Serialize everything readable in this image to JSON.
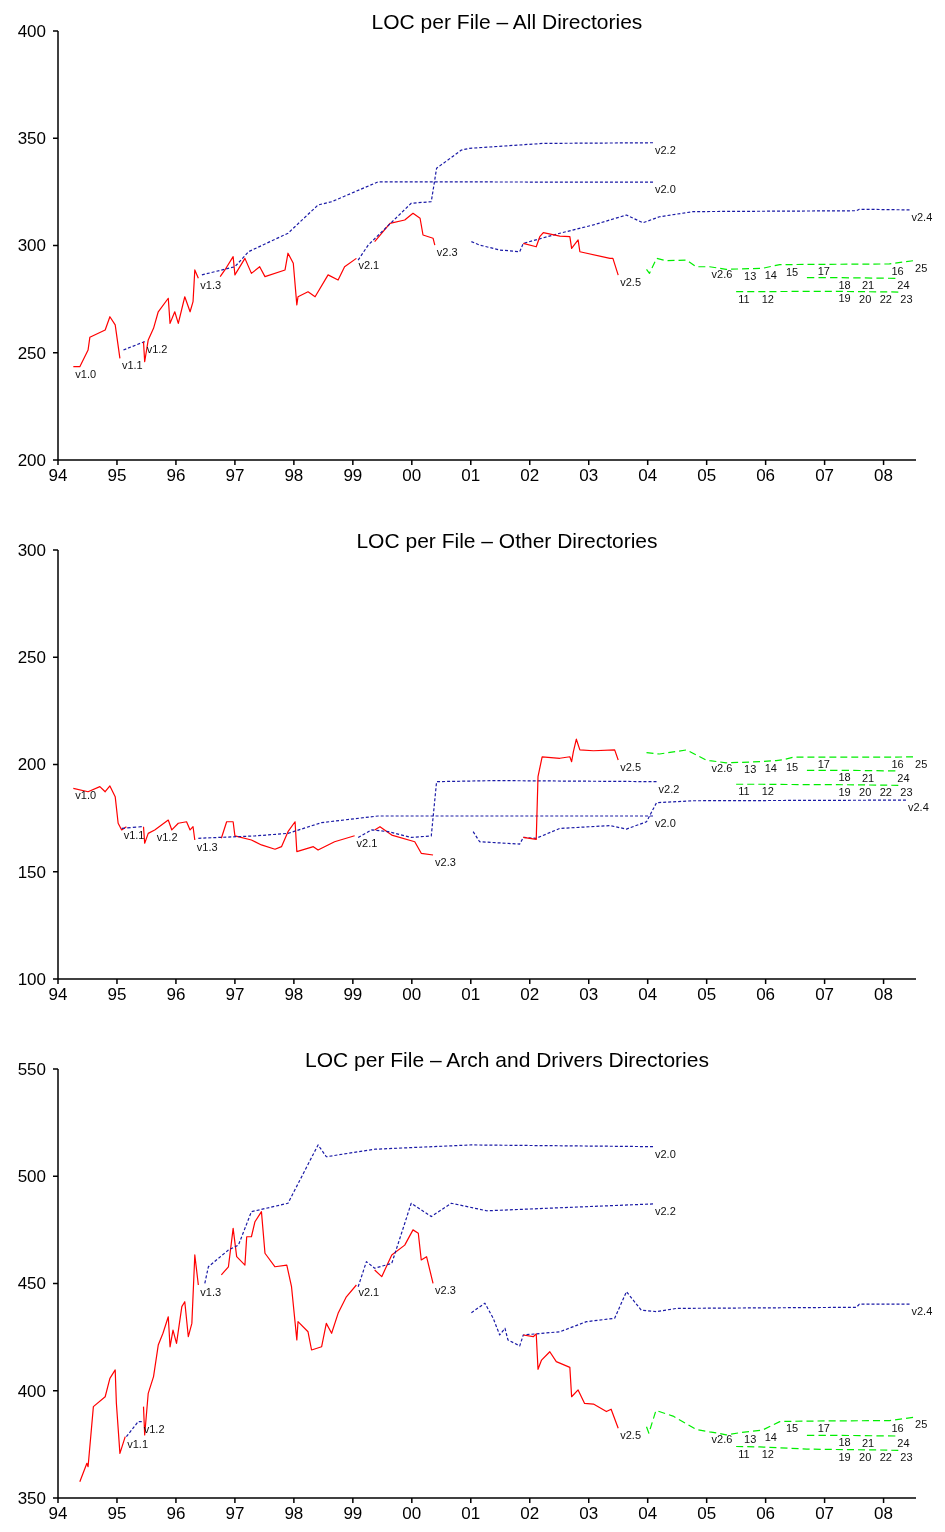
{
  "chart_data": [
    {
      "type": "line",
      "title": "LOC per File – All Directories",
      "xlim": [
        1994,
        2008.55
      ],
      "ylim": [
        200,
        400
      ],
      "yticks": [
        200,
        250,
        300,
        350,
        400
      ],
      "xticks": [
        {
          "value": 1994,
          "label": "94"
        },
        {
          "value": 1995,
          "label": "95"
        },
        {
          "value": 1996,
          "label": "96"
        },
        {
          "value": 1997,
          "label": "97"
        },
        {
          "value": 1998,
          "label": "98"
        },
        {
          "value": 1999,
          "label": "99"
        },
        {
          "value": 2000,
          "label": "00"
        },
        {
          "value": 2001,
          "label": "01"
        },
        {
          "value": 2002,
          "label": "02"
        },
        {
          "value": 2003,
          "label": "03"
        },
        {
          "value": 2004,
          "label": "04"
        },
        {
          "value": 2005,
          "label": "05"
        },
        {
          "value": 2006,
          "label": "06"
        },
        {
          "value": 2007,
          "label": "07"
        },
        {
          "value": 2008,
          "label": "08"
        }
      ],
      "series": [
        {
          "color": "#ff0000",
          "line_style": "solid",
          "x": [
            1994.26,
            1994.37,
            1994.51,
            1994.54,
            1994.8,
            1994.88,
            1994.97,
            1995.05
          ],
          "values": [
            243.5,
            243.5,
            251.3,
            257.2,
            260.6,
            266.8,
            263,
            247.4
          ]
        },
        {
          "color": "#1a1aa6",
          "line_style": "dotted",
          "x": [
            1995.11,
            1995.47
          ],
          "values": [
            251.3,
            255.2
          ]
        },
        {
          "color": "#ff0000",
          "line_style": "solid",
          "x": [
            1995.45,
            1995.47,
            1995.53,
            1995.62,
            1995.7,
            1995.87,
            1995.9,
            1995.98,
            1996.04,
            1996.15,
            1996.24,
            1996.29,
            1996.32,
            1996.38
          ],
          "values": [
            255.2,
            245.8,
            256,
            261.4,
            269.1,
            275.4,
            263.7,
            269.1,
            263.7,
            276.1,
            269.1,
            273.8,
            288.6,
            284.7
          ]
        },
        {
          "color": "#ff0000",
          "line_style": "solid",
          "x": [
            1996.75,
            1996.83,
            1996.97,
            1997,
            1997.17,
            1997.28,
            1997.42,
            1997.51,
            1997.85,
            1997.9,
            1997.99,
            1998.05,
            1998.07,
            1998.24,
            1998.36,
            1998.58,
            1998.75,
            1998.86,
            1999.06
          ],
          "values": [
            285.5,
            288.6,
            294.8,
            286.3,
            294,
            287,
            290.1,
            285.5,
            288.6,
            296.4,
            291.7,
            272.3,
            276.1,
            278.4,
            276.1,
            286.3,
            283.9,
            290.1,
            294
          ]
        },
        {
          "color": "#ff0000",
          "line_style": "solid",
          "x": [
            1999.37,
            1999.63,
            1999.88,
            2000.02,
            2000.14,
            2000.19,
            2000.36,
            2000.39
          ],
          "values": [
            301.8,
            310.3,
            311.9,
            315,
            312.7,
            304.9,
            303.4,
            300.2
          ]
        },
        {
          "color": "#1a1aa6",
          "line_style": "dotted",
          "x": [
            1996.44,
            1996.66,
            1997,
            1997.23,
            1997.9,
            1998.41,
            1998.64,
            1999.43,
            2004.09
          ],
          "values": [
            286.3,
            287.8,
            290.1,
            297.1,
            305.7,
            318.9,
            320.4,
            329.7,
            329.5
          ]
        },
        {
          "color": "#1a1aa6",
          "line_style": "dotted",
          "x": [
            1999.09,
            1999.26,
            1999.99,
            2000.33,
            2000.42,
            2000.84,
            2000.98,
            2002.23,
            2004.09
          ],
          "values": [
            293.2,
            300.2,
            319.7,
            320.4,
            336,
            344.5,
            345.3,
            347.6,
            347.9
          ]
        },
        {
          "color": "#1a1aa6",
          "line_style": "dotted",
          "x": [
            2001.01,
            2001.15,
            2001.49,
            2001.83,
            2001.89,
            2002.51,
            2003.08,
            2003.64,
            2003.92,
            2004.2,
            2004.77,
            2007.54,
            2007.59,
            2008.44
          ],
          "values": [
            301.8,
            300.2,
            297.9,
            297.1,
            301,
            305.7,
            309.6,
            314.2,
            310.6,
            313.4,
            315.8,
            316.2,
            316.9,
            316.6
          ]
        },
        {
          "color": "#ff0000",
          "line_style": "solid",
          "x": [
            2001.89,
            2002.11,
            2002.17,
            2002.23,
            2002.51,
            2002.68,
            2002.71,
            2002.82,
            2002.85,
            2003.36,
            2003.41,
            2003.5
          ],
          "values": [
            301,
            299.4,
            304.1,
            306,
            304.4,
            304.1,
            298.7,
            302.6,
            297.1,
            294,
            294,
            286.2
          ]
        },
        {
          "color": "#00ee00",
          "line_style": "dashed",
          "x": [
            2003.98,
            2004.03,
            2004.15,
            2004.32,
            2004.66,
            2004.82,
            2005.05,
            2005.33,
            2005.6,
            2005.95,
            2006.24,
            2006.31,
            2006.85,
            2008.1,
            2008.5
          ],
          "values": [
            288.9,
            287,
            294,
            292.9,
            293.2,
            290.1,
            290.1,
            288.9,
            289.1,
            289.4,
            291.1,
            291.1,
            291.2,
            291.4,
            292.9
          ]
        },
        {
          "color": "#00ee00",
          "line_style": "dashed",
          "x": [
            2006.7,
            2007.2,
            2007.6,
            2008.2
          ],
          "values": [
            285,
            285,
            284.9,
            284.7
          ]
        },
        {
          "color": "#00ee00",
          "line_style": "dashed",
          "x": [
            2005.5,
            2005.9,
            2006.7,
            2007.2,
            2007.55,
            2007.9,
            2008.25
          ],
          "values": [
            278.5,
            278.5,
            278.6,
            278.6,
            278.5,
            278.4,
            278.3
          ]
        }
      ],
      "annotations": [
        {
          "text": "v1.0",
          "x": 1994.26,
          "y": 243.5
        },
        {
          "text": "v1.1",
          "x": 1995.05,
          "y": 247.4
        },
        {
          "text": "v1.2",
          "x": 1995.47,
          "y": 255.2
        },
        {
          "text": "v1.3",
          "x": 1996.38,
          "y": 284.7
        },
        {
          "text": "v2.1",
          "x": 1999.06,
          "y": 294
        },
        {
          "text": "v2.3",
          "x": 2000.39,
          "y": 300.2
        },
        {
          "text": "v2.0",
          "x": 2004.09,
          "y": 329.5
        },
        {
          "text": "v2.2",
          "x": 2004.09,
          "y": 347.9
        },
        {
          "text": "v2.4",
          "x": 2008.44,
          "y": 316.6
        },
        {
          "text": "v2.5",
          "x": 2003.5,
          "y": 286.2
        },
        {
          "text": "v2.6",
          "x": 2005.05,
          "y": 290.1
        },
        {
          "text": "11",
          "x": 2005.5,
          "y": 278.5
        },
        {
          "text": "12",
          "x": 2005.9,
          "y": 278.5
        },
        {
          "text": "13",
          "x": 2005.6,
          "y": 289.1
        },
        {
          "text": "14",
          "x": 2005.95,
          "y": 289.4
        },
        {
          "text": "15",
          "x": 2006.31,
          "y": 291.1
        },
        {
          "text": "16",
          "x": 2008.1,
          "y": 291.4
        },
        {
          "text": "17",
          "x": 2006.85,
          "y": 291.2
        },
        {
          "text": "18",
          "x": 2007.2,
          "y": 285
        },
        {
          "text": "19",
          "x": 2007.2,
          "y": 278.6
        },
        {
          "text": "20",
          "x": 2007.55,
          "y": 278.5
        },
        {
          "text": "21",
          "x": 2007.6,
          "y": 284.9
        },
        {
          "text": "22",
          "x": 2007.9,
          "y": 278.4
        },
        {
          "text": "23",
          "x": 2008.25,
          "y": 278.3
        },
        {
          "text": "24",
          "x": 2008.2,
          "y": 284.7
        },
        {
          "text": "25",
          "x": 2008.5,
          "y": 292.9
        }
      ]
    },
    {
      "type": "line",
      "title": "LOC per File – Other Directories",
      "xlim": [
        1994,
        2008.55
      ],
      "ylim": [
        100,
        300
      ],
      "yticks": [
        100,
        150,
        200,
        250,
        300
      ],
      "xticks": [
        {
          "value": 1994,
          "label": "94"
        },
        {
          "value": 1995,
          "label": "95"
        },
        {
          "value": 1996,
          "label": "96"
        },
        {
          "value": 1997,
          "label": "97"
        },
        {
          "value": 1998,
          "label": "98"
        },
        {
          "value": 1999,
          "label": "99"
        },
        {
          "value": 2000,
          "label": "00"
        },
        {
          "value": 2001,
          "label": "01"
        },
        {
          "value": 2002,
          "label": "02"
        },
        {
          "value": 2003,
          "label": "03"
        },
        {
          "value": 2004,
          "label": "04"
        },
        {
          "value": 2005,
          "label": "05"
        },
        {
          "value": 2006,
          "label": "06"
        },
        {
          "value": 2007,
          "label": "07"
        },
        {
          "value": 2008,
          "label": "08"
        }
      ],
      "series": [
        {
          "color": "#ff0000",
          "line_style": "solid",
          "x": [
            1994.26,
            1994.51,
            1994.71,
            1994.8,
            1994.88,
            1994.97,
            1995.02,
            1995.08,
            1995.16
          ],
          "values": [
            188.9,
            187.3,
            189.7,
            187.3,
            190,
            185,
            172.6,
            169.5,
            171
          ]
        },
        {
          "color": "#1a1aa6",
          "line_style": "dotted",
          "x": [
            1995.08,
            1995.42
          ],
          "values": [
            170.2,
            171
          ]
        },
        {
          "color": "#ff0000",
          "line_style": "solid",
          "x": [
            1995.45,
            1995.47,
            1995.53,
            1995.64,
            1995.87,
            1995.93,
            1996.04,
            1996.18,
            1996.24,
            1996.29,
            1996.32
          ],
          "values": [
            171,
            163.3,
            167.9,
            169.5,
            174.1,
            169.5,
            172.6,
            173.3,
            169.5,
            171,
            164.8
          ]
        },
        {
          "color": "#ff0000",
          "line_style": "solid",
          "x": [
            1996.77,
            1996.86,
            1996.97,
            1997,
            1997.28,
            1997.45,
            1997.68,
            1997.79,
            1997.9,
            1998.02,
            1998.05,
            1998.33,
            1998.41,
            1998.69,
            1999.03
          ],
          "values": [
            165.6,
            173.3,
            173.3,
            166.7,
            164.8,
            162.5,
            160.5,
            161.7,
            168.7,
            173.3,
            159.4,
            161.7,
            160.1,
            164,
            166.8
          ]
        },
        {
          "color": "#ff0000",
          "line_style": "solid",
          "x": [
            1999.37,
            1999.46,
            1999.66,
            2000.05,
            2000.16,
            2000.36
          ],
          "values": [
            169.5,
            171,
            167.1,
            164,
            158.6,
            157.8
          ]
        },
        {
          "color": "#1a1aa6",
          "line_style": "dotted",
          "x": [
            1996.38,
            1997.34,
            1997.9,
            1998.47,
            1999.43,
            2004.09
          ],
          "values": [
            165.6,
            166.7,
            167.9,
            172.9,
            176,
            176
          ]
        },
        {
          "color": "#1a1aa6",
          "line_style": "dotted",
          "x": [
            1999.09,
            1999.32,
            1999.6,
            1999.99,
            2000.33,
            2000.42,
            2001.41,
            2004.15
          ],
          "values": [
            166,
            169.5,
            168.7,
            166,
            166.7,
            192,
            192.5,
            192
          ]
        },
        {
          "color": "#1a1aa6",
          "line_style": "dotted",
          "x": [
            2001.04,
            2001.15,
            2001.83,
            2001.89,
            2002.11,
            2002.51,
            2003.36,
            2003.64,
            2003.98,
            2004.15,
            2004.77,
            2008.38
          ],
          "values": [
            168.7,
            164,
            162.9,
            166,
            165.6,
            170.2,
            171.5,
            169.9,
            173.3,
            182.2,
            183.1,
            183.4
          ]
        },
        {
          "color": "#ff0000",
          "line_style": "solid",
          "x": [
            2001.89,
            2002.11,
            2002.14,
            2002.21,
            2002.51,
            2002.68,
            2002.71,
            2002.74,
            2002.79,
            2002.85,
            2003.08,
            2003.44,
            2003.5
          ],
          "values": [
            166,
            165.1,
            194.3,
            203.6,
            202.9,
            203.6,
            201.3,
            206,
            211.8,
            206.8,
            206.4,
            206.8,
            202.1
          ]
        },
        {
          "color": "#00ee00",
          "line_style": "dashed",
          "x": [
            2003.98,
            2004.2,
            2004.66,
            2004.99,
            2005.05,
            2005.33,
            2005.6,
            2005.95,
            2006.18,
            2006.31,
            2006.47,
            2006.85,
            2008.1,
            2008.5
          ],
          "values": [
            205.5,
            204.9,
            206.8,
            202.1,
            201.8,
            200.8,
            201,
            201.4,
            201.8,
            202.3,
            203.4,
            203.4,
            203.4,
            203.6
          ]
        },
        {
          "color": "#00ee00",
          "line_style": "dashed",
          "x": [
            2006.7,
            2007.2,
            2007.6,
            2008.2
          ],
          "values": [
            197.3,
            197.3,
            197.2,
            197
          ]
        },
        {
          "color": "#00ee00",
          "line_style": "dashed",
          "x": [
            2005.5,
            2005.9,
            2006.7,
            2007.2,
            2007.55,
            2007.9,
            2008.25
          ],
          "values": [
            190.8,
            190.8,
            190.6,
            190.6,
            190.5,
            190.4,
            190.3
          ]
        }
      ],
      "annotations": [
        {
          "text": "v1.0",
          "x": 1994.26,
          "y": 188.9
        },
        {
          "text": "v1.1",
          "x": 1995.08,
          "y": 170.2
        },
        {
          "text": "v1.2",
          "x": 1995.64,
          "y": 169.5
        },
        {
          "text": "v1.3",
          "x": 1996.32,
          "y": 164.8
        },
        {
          "text": "v2.1",
          "x": 1999.03,
          "y": 166.8
        },
        {
          "text": "v2.3",
          "x": 2000.36,
          "y": 157.8
        },
        {
          "text": "v2.5",
          "x": 2003.5,
          "y": 202.1
        },
        {
          "text": "v2.2",
          "x": 2004.15,
          "y": 192
        },
        {
          "text": "v2.0",
          "x": 2004.09,
          "y": 176
        },
        {
          "text": "v2.4",
          "x": 2008.38,
          "y": 183.4
        },
        {
          "text": "v2.6",
          "x": 2005.05,
          "y": 201.8
        },
        {
          "text": "11",
          "x": 2005.5,
          "y": 190.8
        },
        {
          "text": "12",
          "x": 2005.9,
          "y": 190.8
        },
        {
          "text": "13",
          "x": 2005.6,
          "y": 201
        },
        {
          "text": "14",
          "x": 2005.95,
          "y": 201.4
        },
        {
          "text": "15",
          "x": 2006.31,
          "y": 202.3
        },
        {
          "text": "16",
          "x": 2008.1,
          "y": 203.4
        },
        {
          "text": "17",
          "x": 2006.85,
          "y": 203.4
        },
        {
          "text": "18",
          "x": 2007.2,
          "y": 197.3
        },
        {
          "text": "19",
          "x": 2007.2,
          "y": 190.6
        },
        {
          "text": "20",
          "x": 2007.55,
          "y": 190.5
        },
        {
          "text": "21",
          "x": 2007.6,
          "y": 197.2
        },
        {
          "text": "22",
          "x": 2007.9,
          "y": 190.4
        },
        {
          "text": "23",
          "x": 2008.25,
          "y": 190.3
        },
        {
          "text": "24",
          "x": 2008.2,
          "y": 197
        },
        {
          "text": "25",
          "x": 2008.5,
          "y": 203.6
        }
      ]
    },
    {
      "type": "line",
      "title": "LOC per File – Arch and Drivers Directories",
      "xlim": [
        1994,
        2008.55
      ],
      "ylim": [
        350,
        550
      ],
      "yticks": [
        350,
        400,
        450,
        500,
        550
      ],
      "xticks": [
        {
          "value": 1994,
          "label": "94"
        },
        {
          "value": 1995,
          "label": "95"
        },
        {
          "value": 1996,
          "label": "96"
        },
        {
          "value": 1997,
          "label": "97"
        },
        {
          "value": 1998,
          "label": "98"
        },
        {
          "value": 1999,
          "label": "99"
        },
        {
          "value": 2000,
          "label": "00"
        },
        {
          "value": 2001,
          "label": "01"
        },
        {
          "value": 2002,
          "label": "02"
        },
        {
          "value": 2003,
          "label": "03"
        },
        {
          "value": 2004,
          "label": "04"
        },
        {
          "value": 2005,
          "label": "05"
        },
        {
          "value": 2006,
          "label": "06"
        },
        {
          "value": 2007,
          "label": "07"
        },
        {
          "value": 2008,
          "label": "08"
        }
      ],
      "series": [
        {
          "color": "#ff0000",
          "line_style": "solid",
          "x": [
            1994.37,
            1994.49,
            1994.51,
            1994.6,
            1994.8,
            1994.88,
            1994.97,
            1994.99,
            1995.05,
            1995.14
          ],
          "values": [
            357.6,
            366.2,
            364.6,
            392.6,
            397.2,
            405.8,
            409.7,
            394.2,
            370.8,
            378.6
          ]
        },
        {
          "color": "#1a1aa6",
          "line_style": "dotted",
          "x": [
            1995.16,
            1995.36,
            1995.42
          ],
          "values": [
            378.6,
            385.6,
            385.6
          ]
        },
        {
          "color": "#ff0000",
          "line_style": "solid",
          "x": [
            1995.45,
            1995.47,
            1995.53,
            1995.62,
            1995.7,
            1995.78,
            1995.87,
            1995.9,
            1995.95,
            1996.01,
            1996.1,
            1996.15,
            1996.21,
            1996.27,
            1996.32,
            1996.38
          ],
          "values": [
            392.6,
            379.4,
            398.8,
            406.6,
            421.3,
            426.8,
            434.5,
            420.5,
            428.3,
            422.1,
            439.2,
            441.5,
            425.2,
            431.4,
            463.3,
            449.3
          ]
        },
        {
          "color": "#ff0000",
          "line_style": "solid",
          "x": [
            1996.77,
            1996.89,
            1996.97,
            1997.03,
            1997.17,
            1997.2,
            1997.28,
            1997.34,
            1997.45,
            1997.51,
            1997.68,
            1997.88,
            1997.96,
            1998.05,
            1998.07,
            1998.24,
            1998.3,
            1998.47,
            1998.55,
            1998.64,
            1998.75,
            1998.89,
            1999.06
          ],
          "values": [
            454,
            457.8,
            475.7,
            462.5,
            458.6,
            471.8,
            471.8,
            478.8,
            483.5,
            464.1,
            457.8,
            458.6,
            448.5,
            423.7,
            432.2,
            427.5,
            419,
            420.5,
            431.4,
            426.8,
            436.1,
            443.8,
            449.3
          ]
        },
        {
          "color": "#ff0000",
          "line_style": "solid",
          "x": [
            1999.37,
            1999.49,
            1999.66,
            1999.88,
            2000.02,
            2000.11,
            2000.16,
            2000.25,
            2000.36
          ],
          "values": [
            456.3,
            453.2,
            463.3,
            467.9,
            475,
            473.4,
            461,
            462.5,
            450.1
          ]
        },
        {
          "color": "#1a1aa6",
          "line_style": "dotted",
          "x": [
            1996.49,
            1996.55,
            1996.89,
            1997.06,
            1997.28,
            1997.9,
            1998.41,
            1998.55,
            1999.37,
            2001.01,
            2004.09
          ],
          "values": [
            450.1,
            457.8,
            465.6,
            467.9,
            483.5,
            487.4,
            514.6,
            509.1,
            512.6,
            514.6,
            513.8
          ]
        },
        {
          "color": "#1a1aa6",
          "line_style": "dotted",
          "x": [
            1999.09,
            1999.23,
            1999.37,
            1999.66,
            1999.99,
            2000.33,
            2000.67,
            2000.81,
            2001.27,
            2004.09
          ],
          "values": [
            448.5,
            460.2,
            457.1,
            459.4,
            487.4,
            481.2,
            487.4,
            486.6,
            483.9,
            487.1
          ]
        },
        {
          "color": "#1a1aa6",
          "line_style": "dotted",
          "x": [
            2001.01,
            2001.24,
            2001.38,
            2001.49,
            2001.58,
            2001.63,
            2001.83,
            2001.89,
            2002.51,
            2002.96,
            2003.44,
            2003.64,
            2003.89,
            2004.15,
            2004.49,
            2007.54,
            2007.59,
            2008.44
          ],
          "values": [
            436.4,
            440.8,
            433.8,
            426,
            429.1,
            423.7,
            420.9,
            426,
            427.5,
            432.2,
            433.8,
            446.2,
            437.6,
            436.9,
            438.4,
            438.9,
            440.4,
            440.4
          ]
        },
        {
          "color": "#ff0000",
          "line_style": "solid",
          "x": [
            2001.89,
            2002.06,
            2002.11,
            2002.14,
            2002.2,
            2002.34,
            2002.45,
            2002.68,
            2002.71,
            2002.82,
            2002.93,
            2003.08,
            2003.3,
            2003.38,
            2003.5
          ],
          "values": [
            426,
            425.2,
            426.5,
            410,
            414.3,
            418.2,
            413.6,
            410.9,
            397.2,
            400.4,
            394.1,
            393.8,
            390.3,
            391.4,
            382.5
          ]
        },
        {
          "color": "#00ee00",
          "line_style": "dashed",
          "x": [
            2003.98,
            2004.02,
            2004.14,
            2004.43,
            2004.82,
            2005.05,
            2005.19,
            2005.33,
            2005.6,
            2005.95,
            2006.24,
            2006.31,
            2006.85,
            2008.1,
            2008.5
          ],
          "values": [
            383.2,
            380.2,
            390.8,
            388.2,
            382,
            380.8,
            380.2,
            379.4,
            380.6,
            381.7,
            385.6,
            385.7,
            385.9,
            386.1,
            387.6
          ]
        },
        {
          "color": "#00ee00",
          "line_style": "dashed",
          "x": [
            2006.7,
            2007.2,
            2007.6,
            2008.2
          ],
          "values": [
            379.2,
            379.2,
            379.1,
            378.9
          ]
        },
        {
          "color": "#00ee00",
          "line_style": "dashed",
          "x": [
            2005.5,
            2005.9,
            2006.7,
            2007.2,
            2007.55,
            2007.9,
            2008.25
          ],
          "values": [
            374,
            373.8,
            372.8,
            372.6,
            372.5,
            372.4,
            372.2
          ]
        }
      ],
      "annotations": [
        {
          "text": "v1.1",
          "x": 1995.14,
          "y": 378.6
        },
        {
          "text": "v1.2",
          "x": 1995.42,
          "y": 385.6
        },
        {
          "text": "v1.3",
          "x": 1996.38,
          "y": 449.3
        },
        {
          "text": "v2.1",
          "x": 1999.06,
          "y": 449.3
        },
        {
          "text": "v2.3",
          "x": 2000.36,
          "y": 450.1
        },
        {
          "text": "v2.0",
          "x": 2004.09,
          "y": 513.8
        },
        {
          "text": "v2.2",
          "x": 2004.09,
          "y": 487.1
        },
        {
          "text": "v2.4",
          "x": 2008.44,
          "y": 440.4
        },
        {
          "text": "v2.5",
          "x": 2003.5,
          "y": 382.5
        },
        {
          "text": "v2.6",
          "x": 2005.05,
          "y": 380.8
        },
        {
          "text": "11",
          "x": 2005.5,
          "y": 374
        },
        {
          "text": "12",
          "x": 2005.9,
          "y": 373.8
        },
        {
          "text": "13",
          "x": 2005.6,
          "y": 380.6
        },
        {
          "text": "14",
          "x": 2005.95,
          "y": 381.7
        },
        {
          "text": "15",
          "x": 2006.31,
          "y": 385.7
        },
        {
          "text": "16",
          "x": 2008.1,
          "y": 386.1
        },
        {
          "text": "17",
          "x": 2006.85,
          "y": 385.9
        },
        {
          "text": "18",
          "x": 2007.2,
          "y": 379.2
        },
        {
          "text": "19",
          "x": 2007.2,
          "y": 372.6
        },
        {
          "text": "20",
          "x": 2007.55,
          "y": 372.5
        },
        {
          "text": "21",
          "x": 2007.6,
          "y": 379.1
        },
        {
          "text": "22",
          "x": 2007.9,
          "y": 372.4
        },
        {
          "text": "23",
          "x": 2008.25,
          "y": 372.2
        },
        {
          "text": "24",
          "x": 2008.2,
          "y": 378.9
        },
        {
          "text": "25",
          "x": 2008.5,
          "y": 387.6
        }
      ]
    }
  ]
}
